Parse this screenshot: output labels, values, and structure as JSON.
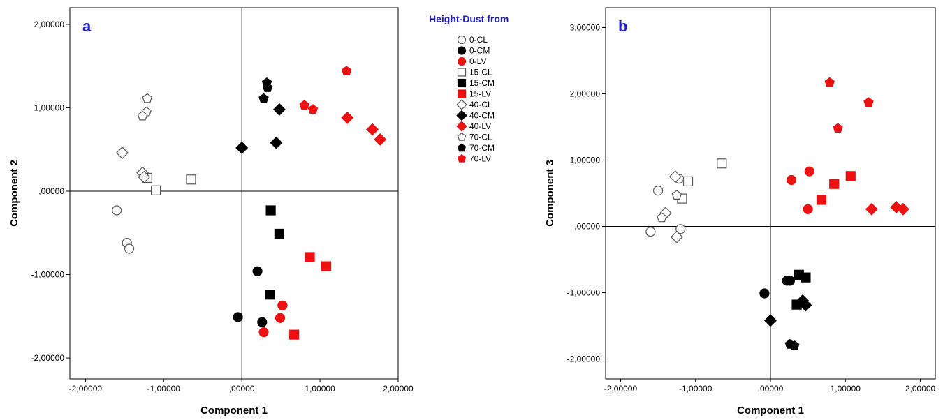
{
  "legend": {
    "title": "Height-Dust from",
    "entries": [
      {
        "label": "0-CL",
        "marker": "circle",
        "fill": "#ffffff",
        "stroke": "#555555"
      },
      {
        "label": "0-CM",
        "marker": "circle",
        "fill": "#000000",
        "stroke": "#000000"
      },
      {
        "label": "0-LV",
        "marker": "circle",
        "fill": "#ee1111",
        "stroke": "#ee1111"
      },
      {
        "label": "15-CL",
        "marker": "square",
        "fill": "#ffffff",
        "stroke": "#555555"
      },
      {
        "label": "15-CM",
        "marker": "square",
        "fill": "#000000",
        "stroke": "#000000"
      },
      {
        "label": "15-LV",
        "marker": "square",
        "fill": "#ee1111",
        "stroke": "#ee1111"
      },
      {
        "label": "40-CL",
        "marker": "diamond",
        "fill": "#ffffff",
        "stroke": "#555555"
      },
      {
        "label": "40-CM",
        "marker": "diamond",
        "fill": "#000000",
        "stroke": "#000000"
      },
      {
        "label": "40-LV",
        "marker": "diamond",
        "fill": "#ee1111",
        "stroke": "#ee1111"
      },
      {
        "label": "70-CL",
        "marker": "pentagon",
        "fill": "#ffffff",
        "stroke": "#555555"
      },
      {
        "label": "70-CM",
        "marker": "pentagon",
        "fill": "#000000",
        "stroke": "#000000"
      },
      {
        "label": "70-LV",
        "marker": "pentagon",
        "fill": "#ee1111",
        "stroke": "#ee1111"
      }
    ]
  },
  "chart_data": [
    {
      "type": "scatter",
      "panel_label": "a",
      "xlabel": "Component 1",
      "ylabel": "Component 2",
      "xlim": [
        -2.2,
        2.0
      ],
      "ylim": [
        -2.25,
        2.2
      ],
      "xticks": [
        -2,
        -1,
        0,
        1,
        2
      ],
      "xtick_labels": [
        "-2,00000",
        "-1,00000",
        ",00000",
        "1,00000",
        "2,00000"
      ],
      "yticks": [
        -2,
        -1,
        0,
        1,
        2
      ],
      "ytick_labels": [
        "-2,00000",
        "-1,00000",
        ",00000",
        "1,00000",
        "2,00000"
      ],
      "reference_lines": {
        "x": 0,
        "y": 0
      },
      "grid": false,
      "series": [
        {
          "name": "0-CL",
          "points": [
            [
              -1.6,
              -0.23
            ],
            [
              -1.47,
              -0.62
            ],
            [
              -1.44,
              -0.69
            ]
          ]
        },
        {
          "name": "0-CM",
          "points": [
            [
              -0.05,
              -1.51
            ],
            [
              0.2,
              -0.96
            ],
            [
              0.26,
              -1.57
            ]
          ]
        },
        {
          "name": "0-LV",
          "points": [
            [
              0.28,
              -1.69
            ],
            [
              0.49,
              -1.52
            ],
            [
              0.52,
              -1.37
            ]
          ]
        },
        {
          "name": "15-CL",
          "points": [
            [
              -1.1,
              0.01
            ],
            [
              -1.21,
              0.16
            ],
            [
              -0.65,
              0.14
            ]
          ]
        },
        {
          "name": "15-CM",
          "points": [
            [
              0.37,
              -0.23
            ],
            [
              0.48,
              -0.51
            ],
            [
              0.36,
              -1.24
            ]
          ]
        },
        {
          "name": "15-LV",
          "points": [
            [
              0.87,
              -0.79
            ],
            [
              1.08,
              -0.9
            ],
            [
              0.67,
              -1.72
            ]
          ]
        },
        {
          "name": "40-CL",
          "points": [
            [
              -1.53,
              0.46
            ],
            [
              -1.27,
              0.22
            ],
            [
              -1.25,
              0.17
            ]
          ]
        },
        {
          "name": "40-CM",
          "points": [
            [
              0.0,
              0.52
            ],
            [
              0.44,
              0.58
            ],
            [
              0.48,
              0.98
            ]
          ]
        },
        {
          "name": "40-LV",
          "points": [
            [
              1.35,
              0.88
            ],
            [
              1.67,
              0.74
            ],
            [
              1.77,
              0.62
            ]
          ]
        },
        {
          "name": "70-CL",
          "points": [
            [
              -1.21,
              1.11
            ],
            [
              -1.22,
              0.95
            ],
            [
              -1.27,
              0.9
            ]
          ]
        },
        {
          "name": "70-CM",
          "points": [
            [
              0.32,
              1.3
            ],
            [
              0.33,
              1.24
            ],
            [
              0.28,
              1.11
            ]
          ]
        },
        {
          "name": "70-LV",
          "points": [
            [
              1.34,
              1.44
            ],
            [
              0.8,
              1.03
            ],
            [
              0.91,
              0.98
            ]
          ]
        }
      ]
    },
    {
      "type": "scatter",
      "panel_label": "b",
      "xlabel": "Component 1",
      "ylabel": "Component 3",
      "xlim": [
        -2.2,
        2.2
      ],
      "ylim": [
        -2.3,
        3.3
      ],
      "xticks": [
        -2,
        -1,
        0,
        1,
        2
      ],
      "xtick_labels": [
        "-2,00000",
        "-1,00000",
        ",00000",
        "1,00000",
        "2,00000"
      ],
      "yticks": [
        -2,
        -1,
        0,
        1,
        2,
        3
      ],
      "ytick_labels": [
        "-2,00000",
        "-1,00000",
        ",00000",
        "1,00000",
        "2,00000",
        "3,00000"
      ],
      "reference_lines": {
        "x": 0,
        "y": 0
      },
      "grid": false,
      "series": [
        {
          "name": "0-CL",
          "points": [
            [
              -1.6,
              -0.08
            ],
            [
              -1.5,
              0.54
            ],
            [
              -1.2,
              -0.04
            ],
            [
              -1.22,
              0.72
            ]
          ]
        },
        {
          "name": "0-CM",
          "points": [
            [
              -0.08,
              -1.01
            ],
            [
              0.22,
              -0.82
            ],
            [
              0.26,
              -0.82
            ]
          ]
        },
        {
          "name": "0-LV",
          "points": [
            [
              0.28,
              0.7
            ],
            [
              0.52,
              0.83
            ],
            [
              0.5,
              0.26
            ]
          ]
        },
        {
          "name": "15-CL",
          "points": [
            [
              -1.18,
              0.42
            ],
            [
              -1.1,
              0.68
            ],
            [
              -0.65,
              0.95
            ]
          ]
        },
        {
          "name": "15-CM",
          "points": [
            [
              0.38,
              -0.73
            ],
            [
              0.47,
              -0.77
            ],
            [
              0.35,
              -1.18
            ]
          ]
        },
        {
          "name": "15-LV",
          "points": [
            [
              0.68,
              0.4
            ],
            [
              0.85,
              0.64
            ],
            [
              1.07,
              0.76
            ]
          ]
        },
        {
          "name": "40-CL",
          "points": [
            [
              -1.27,
              0.75
            ],
            [
              -1.4,
              0.2
            ],
            [
              -1.25,
              -0.16
            ]
          ]
        },
        {
          "name": "40-CM",
          "points": [
            [
              0.0,
              -1.42
            ],
            [
              0.43,
              -1.12
            ],
            [
              0.47,
              -1.19
            ]
          ]
        },
        {
          "name": "40-LV",
          "points": [
            [
              1.35,
              0.26
            ],
            [
              1.68,
              0.29
            ],
            [
              1.77,
              0.26
            ]
          ]
        },
        {
          "name": "70-CL",
          "points": [
            [
              -1.45,
              0.13
            ],
            [
              -1.25,
              0.47
            ]
          ]
        },
        {
          "name": "70-CM",
          "points": [
            [
              0.26,
              -1.78
            ],
            [
              0.32,
              -1.8
            ]
          ]
        },
        {
          "name": "70-LV",
          "points": [
            [
              0.79,
              2.17
            ],
            [
              1.31,
              1.87
            ],
            [
              0.9,
              1.48
            ]
          ]
        }
      ]
    }
  ]
}
